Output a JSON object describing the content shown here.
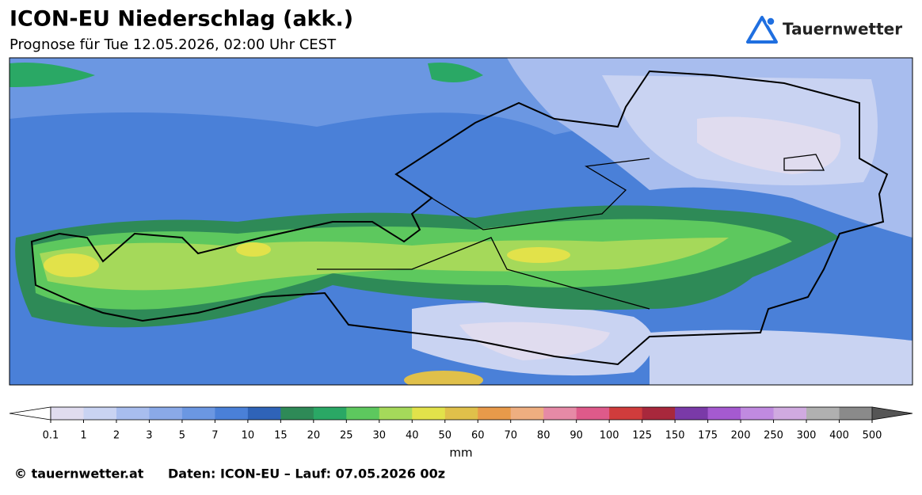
{
  "header": {
    "title": "ICON-EU Niederschlag (akk.)",
    "subtitle": "Prognose für Tue 12.05.2026, 02:00 Uhr CEST"
  },
  "logo": {
    "text": "Tauernwetter"
  },
  "colorbar": {
    "ticks": [
      0.1,
      1,
      2,
      3,
      5,
      7,
      10,
      15,
      20,
      25,
      30,
      40,
      50,
      60,
      70,
      80,
      90,
      100,
      125,
      150,
      175,
      200,
      250,
      300,
      400,
      500
    ],
    "colors": [
      "#e0dcef",
      "#c9d3f2",
      "#a8bdee",
      "#8aa9e8",
      "#6b97e2",
      "#4a80d8",
      "#2f63b8",
      "#2e8a57",
      "#2aa865",
      "#5dc85e",
      "#a5d95a",
      "#e2e24a",
      "#e0c04a",
      "#e89a4a",
      "#eeae80",
      "#e68aa6",
      "#de5a8a",
      "#d03c3c",
      "#a8283c",
      "#7a3aa8",
      "#a55ad0",
      "#c08ae0",
      "#d0aae0",
      "#b0b0b0",
      "#8a8a8a"
    ],
    "under_color": "#ffffff",
    "over_color": "#555555",
    "unit": "mm"
  },
  "footer": {
    "copyright": "© tauernwetter.at",
    "source": "Daten: ICON-EU – Lauf: 07.05.2026 00z"
  }
}
